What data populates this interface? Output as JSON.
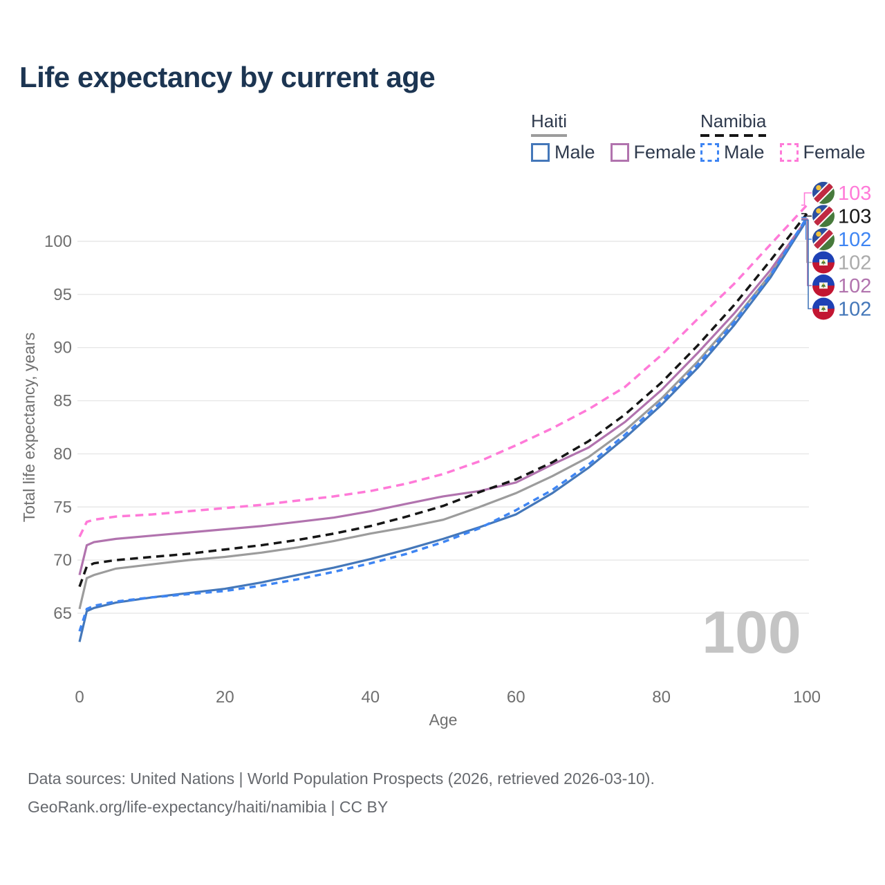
{
  "title": "Life expectancy by current age",
  "legend": {
    "haiti": {
      "country": "Haiti",
      "male_label": "Male",
      "female_label": "Female"
    },
    "namibia": {
      "country": "Namibia",
      "male_label": "Male",
      "female_label": "Female"
    }
  },
  "watermark": "100",
  "footer": {
    "line1": "Data sources: United Nations | World Population Prospects (2026, retrieved 2026-03-10).",
    "line2": "GeoRank.org/life-expectancy/haiti/namibia | CC BY"
  },
  "colors": {
    "title": "#1c3552",
    "grid": "#e7e7e7",
    "axis_text": "#6f6f6f",
    "watermark": "#c4c4c4",
    "haiti_male": "#4477b9",
    "haiti_female": "#b173ae",
    "haiti_total": "#9c9c9c",
    "namibia_male": "#3e85f3",
    "namibia_female": "#ff7ad8",
    "namibia_total": "#161616",
    "end_label_gray": "#ababab"
  },
  "end_labels": [
    {
      "value": "103",
      "series": "Namibia Female",
      "flag": "namibia",
      "color": "#ff7ad8"
    },
    {
      "value": "103",
      "series": "Namibia",
      "flag": "namibia",
      "color": "#161616"
    },
    {
      "value": "102",
      "series": "Namibia Male",
      "flag": "namibia",
      "color": "#3e85f3"
    },
    {
      "value": "102",
      "series": "Haiti",
      "flag": "haiti",
      "color": "#ababab"
    },
    {
      "value": "102",
      "series": "Haiti Female",
      "flag": "haiti",
      "color": "#b173ae"
    },
    {
      "value": "102",
      "series": "Haiti Male",
      "flag": "haiti",
      "color": "#4477b9"
    }
  ],
  "chart_data": {
    "type": "line",
    "title": "Life expectancy by current age",
    "xlabel": "Age",
    "ylabel": "Total life expectancy, years",
    "xlim": [
      0,
      100
    ],
    "ylim": [
      61,
      104
    ],
    "xticks": [
      0,
      20,
      40,
      60,
      80,
      100
    ],
    "yticks": [
      65,
      70,
      75,
      80,
      85,
      90,
      95,
      100
    ],
    "grid": "horizontal-only",
    "legend_position": "top-right",
    "ages": [
      0,
      1,
      2,
      5,
      10,
      15,
      20,
      25,
      30,
      35,
      40,
      45,
      50,
      55,
      60,
      65,
      70,
      75,
      80,
      85,
      90,
      95,
      100
    ],
    "series": [
      {
        "name": "Haiti",
        "country": "Haiti",
        "sex": "both",
        "style": "solid",
        "color": "#9c9c9c",
        "values": [
          65.4,
          68.3,
          68.6,
          69.2,
          69.6,
          70.0,
          70.3,
          70.7,
          71.2,
          71.8,
          72.5,
          73.1,
          73.8,
          75.0,
          76.3,
          77.9,
          79.7,
          82.2,
          85.2,
          88.7,
          92.6,
          96.9,
          102.15
        ]
      },
      {
        "name": "Haiti Female",
        "country": "Haiti",
        "sex": "female",
        "style": "solid",
        "color": "#b173ae",
        "values": [
          68.6,
          71.4,
          71.7,
          72.0,
          72.3,
          72.6,
          72.9,
          73.2,
          73.6,
          74.0,
          74.6,
          75.3,
          76.0,
          76.5,
          77.3,
          79.0,
          80.6,
          83.0,
          86.0,
          89.5,
          93.2,
          97.3,
          102.1
        ]
      },
      {
        "name": "Haiti Male",
        "country": "Haiti",
        "sex": "male",
        "style": "solid",
        "color": "#4477b9",
        "values": [
          62.3,
          65.2,
          65.5,
          66.0,
          66.5,
          66.9,
          67.3,
          67.9,
          68.6,
          69.3,
          70.1,
          71.0,
          72.0,
          73.1,
          74.3,
          76.3,
          78.7,
          81.5,
          84.6,
          88.1,
          92.1,
          96.6,
          102.0
        ]
      },
      {
        "name": "Namibia",
        "country": "Namibia",
        "sex": "both",
        "style": "dashed",
        "color": "#161616",
        "values": [
          67.5,
          69.4,
          69.7,
          70.0,
          70.3,
          70.6,
          71.0,
          71.4,
          71.9,
          72.5,
          73.2,
          74.1,
          75.1,
          76.4,
          77.6,
          79.2,
          81.2,
          83.7,
          86.7,
          90.2,
          94.0,
          98.2,
          102.6
        ]
      },
      {
        "name": "Namibia Male",
        "country": "Namibia",
        "sex": "male",
        "style": "dashed",
        "color": "#3e85f3",
        "values": [
          63.3,
          65.4,
          65.7,
          66.1,
          66.5,
          66.8,
          67.1,
          67.6,
          68.2,
          68.9,
          69.7,
          70.6,
          71.7,
          73.0,
          74.7,
          76.6,
          79.0,
          81.8,
          84.9,
          88.4,
          92.4,
          96.8,
          102.25
        ]
      },
      {
        "name": "Namibia Female",
        "country": "Namibia",
        "sex": "female",
        "style": "dashed",
        "color": "#ff7ad8",
        "values": [
          72.2,
          73.6,
          73.8,
          74.1,
          74.3,
          74.6,
          74.9,
          75.2,
          75.6,
          76.0,
          76.5,
          77.2,
          78.1,
          79.3,
          80.8,
          82.4,
          84.2,
          86.3,
          89.3,
          92.7,
          96.0,
          99.7,
          103.4
        ]
      }
    ]
  }
}
